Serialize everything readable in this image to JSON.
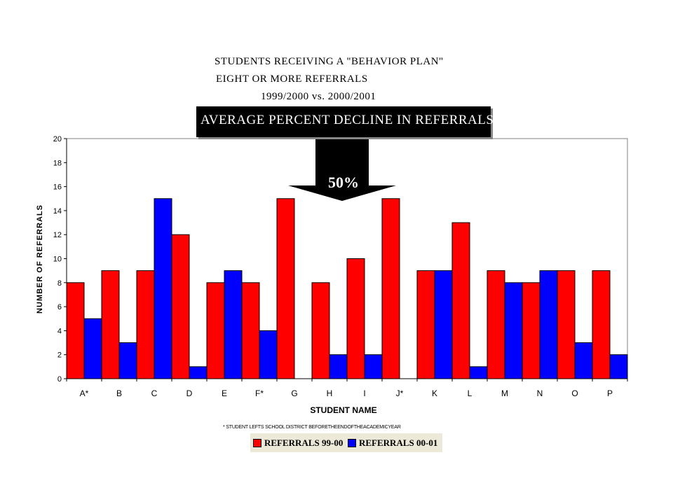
{
  "header": {
    "title_line_1": "STUDENTS RECEIVING A \"BEHAVIOR PLAN\"",
    "title_line_2": "EIGHT OR MORE REFERRALS",
    "title_line_3": "1999/2000 vs. 2000/2001"
  },
  "banner": {
    "text": "AVERAGE PERCENT DECLINE IN REFERRALS",
    "value": "50%"
  },
  "footnote": "* STUDENT LEFTS SCHOOL DISTRICT BEFORETHEENDOFTHEACADEMICYEAR",
  "chart_data": {
    "type": "bar",
    "xlabel": "STUDENT NAME",
    "ylabel": "NUMBER OF REFERRALS",
    "ylim": [
      0,
      20
    ],
    "yticks": [
      0,
      2,
      4,
      6,
      8,
      10,
      12,
      14,
      16,
      18,
      20
    ],
    "grid": false,
    "legend_position": "bottom",
    "categories": [
      "A*",
      "B",
      "C",
      "D",
      "E",
      "F*",
      "G",
      "H",
      "I",
      "J*",
      "K",
      "L",
      "M",
      "N",
      "O",
      "P"
    ],
    "series": [
      {
        "name": "REFERRALS 99-00",
        "color": "#ff0000",
        "values": [
          8,
          9,
          9,
          12,
          8,
          8,
          15,
          8,
          10,
          15,
          9,
          13,
          9,
          8,
          9,
          9
        ]
      },
      {
        "name": "REFERRALS 00-01",
        "color": "#0000ff",
        "values": [
          5,
          3,
          15,
          1,
          9,
          4,
          0,
          2,
          2,
          0,
          9,
          1,
          8,
          9,
          3,
          2
        ]
      }
    ]
  }
}
